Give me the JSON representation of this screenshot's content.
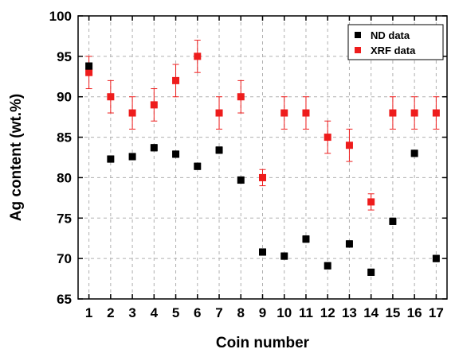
{
  "chart_data": {
    "type": "scatter",
    "xlabel": "Coin number",
    "ylabel": "Ag content (wt.%)",
    "xlim": [
      0.5,
      17.5
    ],
    "ylim": [
      65,
      100
    ],
    "x_ticks": [
      1,
      2,
      3,
      4,
      5,
      6,
      7,
      8,
      9,
      10,
      11,
      12,
      13,
      14,
      15,
      16,
      17
    ],
    "y_ticks": [
      65,
      70,
      75,
      80,
      85,
      90,
      95,
      100
    ],
    "grid": true,
    "legend_position": "top-right",
    "series": [
      {
        "name": "ND data",
        "color": "#000000",
        "marker": "square",
        "x": [
          1,
          2,
          3,
          4,
          5,
          6,
          7,
          8,
          9,
          10,
          11,
          12,
          13,
          14,
          15,
          16,
          17
        ],
        "y": [
          93.8,
          82.3,
          82.6,
          83.7,
          82.9,
          81.4,
          83.4,
          79.7,
          70.8,
          70.3,
          72.4,
          69.1,
          71.8,
          68.3,
          74.6,
          83.0,
          70.0
        ],
        "error": [
          0.4,
          0.4,
          0.4,
          0.4,
          0.4,
          0.4,
          0.4,
          0.4,
          0.4,
          0.4,
          0.4,
          0.4,
          0.4,
          0.4,
          0.4,
          0.4,
          0.4
        ]
      },
      {
        "name": "XRF data",
        "color": "#ee1c1c",
        "marker": "square",
        "x": [
          1,
          2,
          3,
          4,
          5,
          6,
          7,
          8,
          9,
          10,
          11,
          12,
          13,
          14,
          15,
          16,
          17
        ],
        "y": [
          93,
          90,
          88,
          89,
          92,
          95,
          88,
          90,
          80,
          88,
          88,
          85,
          84,
          77,
          88,
          88,
          88
        ],
        "error": [
          2,
          2,
          2,
          2,
          2,
          2,
          2,
          2,
          1,
          2,
          2,
          2,
          2,
          1,
          2,
          2,
          2
        ]
      }
    ]
  }
}
